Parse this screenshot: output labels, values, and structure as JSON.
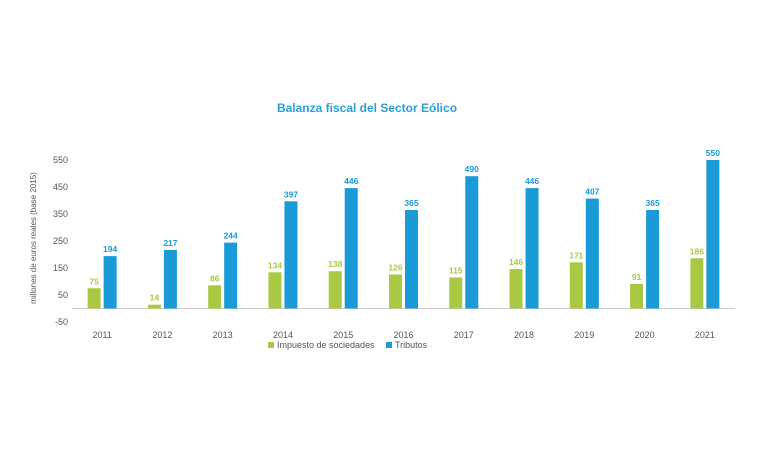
{
  "chart_data": {
    "type": "bar",
    "title": "Balanza fiscal del Sector Eólico",
    "xlabel": "",
    "ylabel": "millones de euros reales (base 2015)",
    "ylim": [
      -50,
      550
    ],
    "yticks": [
      "550",
      "450",
      "350",
      "250",
      "150",
      "50",
      "-50"
    ],
    "ytick_values": [
      550,
      450,
      350,
      250,
      150,
      50,
      -50
    ],
    "categories": [
      "2011",
      "2012",
      "2013",
      "2014",
      "2015",
      "2016",
      "2017",
      "2018",
      "2019",
      "2020",
      "2021"
    ],
    "series": [
      {
        "name": "Impuesto de sociedades",
        "color": "#a9c843",
        "values": [
          75,
          14,
          86,
          134,
          138,
          126,
          115,
          146,
          171,
          91,
          186
        ],
        "labels": [
          "75",
          "14",
          "86",
          "134",
          "138",
          "126",
          "115",
          "146",
          "171",
          "91",
          "186"
        ]
      },
      {
        "name": "Tributos",
        "color": "#1a9ad6",
        "values": [
          194,
          217,
          244,
          397,
          446,
          365,
          490,
          446,
          407,
          365,
          550
        ],
        "labels": [
          "194",
          "217",
          "244",
          "397",
          "446",
          "365",
          "490",
          "446",
          "407",
          "365",
          "550"
        ]
      }
    ],
    "grid": false,
    "legend": "bottom"
  }
}
